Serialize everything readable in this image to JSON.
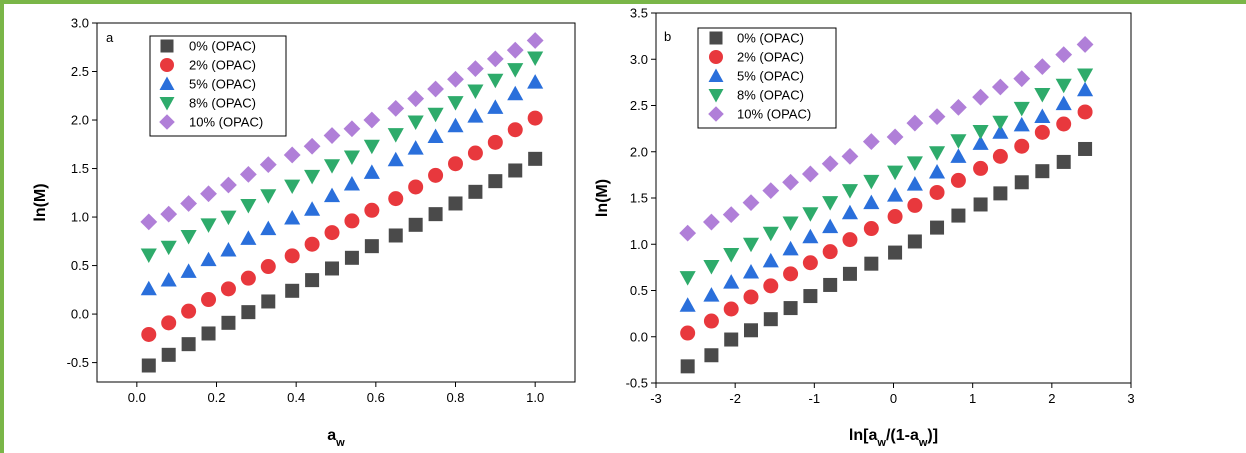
{
  "frame_color": "#7ab648",
  "chart_data": [
    {
      "type": "scatter",
      "panel_label": "a",
      "xlabel_main": "a",
      "xlabel_sub": "w",
      "ylabel": "ln(M)",
      "xlim": [
        -0.1,
        1.1
      ],
      "ylim": [
        -0.7,
        3.0
      ],
      "xticks": [
        "0.0",
        "0.2",
        "0.4",
        "0.6",
        "0.8",
        "1.0"
      ],
      "xtick_values": [
        0.0,
        0.2,
        0.4,
        0.6,
        0.8,
        1.0
      ],
      "yticks": [
        "-0.5",
        "0.0",
        "0.5",
        "1.0",
        "1.5",
        "2.0",
        "2.5",
        "3.0"
      ],
      "ytick_values": [
        -0.5,
        0.0,
        0.5,
        1.0,
        1.5,
        2.0,
        2.5,
        3.0
      ],
      "legend_position": "top-left",
      "x": [
        0.03,
        0.08,
        0.13,
        0.18,
        0.23,
        0.28,
        0.33,
        0.39,
        0.44,
        0.49,
        0.54,
        0.59,
        0.65,
        0.7,
        0.75,
        0.8,
        0.85,
        0.9,
        0.95,
        1.0
      ],
      "series": [
        {
          "name": "0% (OPAC)",
          "color": "#4a4a4a",
          "marker": "square",
          "values": [
            -0.53,
            -0.42,
            -0.31,
            -0.2,
            -0.09,
            0.02,
            0.13,
            0.24,
            0.35,
            0.47,
            0.58,
            0.7,
            0.81,
            0.92,
            1.03,
            1.14,
            1.26,
            1.37,
            1.48,
            1.6
          ]
        },
        {
          "name": "2% (OPAC)",
          "color": "#e8383d",
          "marker": "circle",
          "values": [
            -0.21,
            -0.09,
            0.03,
            0.15,
            0.26,
            0.37,
            0.49,
            0.6,
            0.72,
            0.84,
            0.96,
            1.07,
            1.19,
            1.31,
            1.43,
            1.55,
            1.66,
            1.77,
            1.9,
            2.02
          ]
        },
        {
          "name": "5% (OPAC)",
          "color": "#2a6fdb",
          "marker": "triangle-up",
          "values": [
            0.26,
            0.35,
            0.44,
            0.56,
            0.66,
            0.78,
            0.88,
            0.99,
            1.08,
            1.22,
            1.34,
            1.46,
            1.59,
            1.71,
            1.83,
            1.94,
            2.04,
            2.13,
            2.27,
            2.39
          ]
        },
        {
          "name": "8% (OPAC)",
          "color": "#2eab6b",
          "marker": "triangle-down",
          "values": [
            0.61,
            0.69,
            0.8,
            0.92,
            1.0,
            1.12,
            1.22,
            1.32,
            1.42,
            1.53,
            1.62,
            1.73,
            1.85,
            1.98,
            2.06,
            2.18,
            2.3,
            2.41,
            2.52,
            2.64
          ]
        },
        {
          "name": "10% (OPAC)",
          "color": "#b07fd8",
          "marker": "diamond",
          "values": [
            0.95,
            1.03,
            1.14,
            1.24,
            1.33,
            1.44,
            1.54,
            1.64,
            1.73,
            1.84,
            1.91,
            2.0,
            2.12,
            2.22,
            2.32,
            2.42,
            2.53,
            2.63,
            2.72,
            2.82
          ]
        }
      ]
    },
    {
      "type": "scatter",
      "panel_label": "b",
      "xlabel_main": "ln[a",
      "xlabel_sub1": "w",
      "xlabel_mid": "/(1-a",
      "xlabel_sub2": "w",
      "xlabel_end": ")]",
      "ylabel": "ln(M)",
      "xlim": [
        -3,
        3
      ],
      "ylim": [
        -0.5,
        3.5
      ],
      "xticks": [
        "-3",
        "-2",
        "-1",
        "0",
        "1",
        "2",
        "3"
      ],
      "xtick_values": [
        -3,
        -2,
        -1,
        0,
        1,
        2,
        3
      ],
      "yticks": [
        "-0.5",
        "0.0",
        "0.5",
        "1.0",
        "1.5",
        "2.0",
        "2.5",
        "3.0",
        "3.5"
      ],
      "ytick_values": [
        -0.5,
        0.0,
        0.5,
        1.0,
        1.5,
        2.0,
        2.5,
        3.0,
        3.5
      ],
      "legend_position": "top-left",
      "x": [
        -2.6,
        -2.3,
        -2.05,
        -1.8,
        -1.55,
        -1.3,
        -1.05,
        -0.8,
        -0.55,
        -0.28,
        0.02,
        0.27,
        0.55,
        0.82,
        1.1,
        1.35,
        1.62,
        1.88,
        2.15,
        2.42
      ],
      "series": [
        {
          "name": "0% (OPAC)",
          "color": "#4a4a4a",
          "marker": "square",
          "values": [
            -0.32,
            -0.2,
            -0.03,
            0.07,
            0.19,
            0.31,
            0.44,
            0.56,
            0.68,
            0.79,
            0.91,
            1.03,
            1.18,
            1.31,
            1.43,
            1.55,
            1.67,
            1.79,
            1.89,
            2.03
          ]
        },
        {
          "name": "2% (OPAC)",
          "color": "#e8383d",
          "marker": "circle",
          "values": [
            0.04,
            0.17,
            0.3,
            0.43,
            0.55,
            0.68,
            0.8,
            0.92,
            1.05,
            1.17,
            1.3,
            1.42,
            1.56,
            1.69,
            1.82,
            1.95,
            2.06,
            2.21,
            2.3,
            2.43
          ]
        },
        {
          "name": "5% (OPAC)",
          "color": "#2a6fdb",
          "marker": "triangle-up",
          "values": [
            0.34,
            0.45,
            0.59,
            0.7,
            0.82,
            0.95,
            1.08,
            1.19,
            1.34,
            1.45,
            1.53,
            1.65,
            1.78,
            1.95,
            2.09,
            2.21,
            2.29,
            2.38,
            2.52,
            2.67
          ]
        },
        {
          "name": "8% (OPAC)",
          "color": "#2eab6b",
          "marker": "triangle-down",
          "values": [
            0.64,
            0.76,
            0.89,
            1.0,
            1.12,
            1.23,
            1.33,
            1.45,
            1.58,
            1.68,
            1.78,
            1.88,
            1.99,
            2.12,
            2.22,
            2.32,
            2.47,
            2.62,
            2.72,
            2.83
          ]
        },
        {
          "name": "10% (OPAC)",
          "color": "#b07fd8",
          "marker": "diamond",
          "values": [
            1.12,
            1.24,
            1.32,
            1.45,
            1.58,
            1.67,
            1.76,
            1.87,
            1.95,
            2.11,
            2.16,
            2.31,
            2.38,
            2.48,
            2.59,
            2.7,
            2.79,
            2.92,
            3.05,
            3.16
          ]
        }
      ]
    }
  ]
}
